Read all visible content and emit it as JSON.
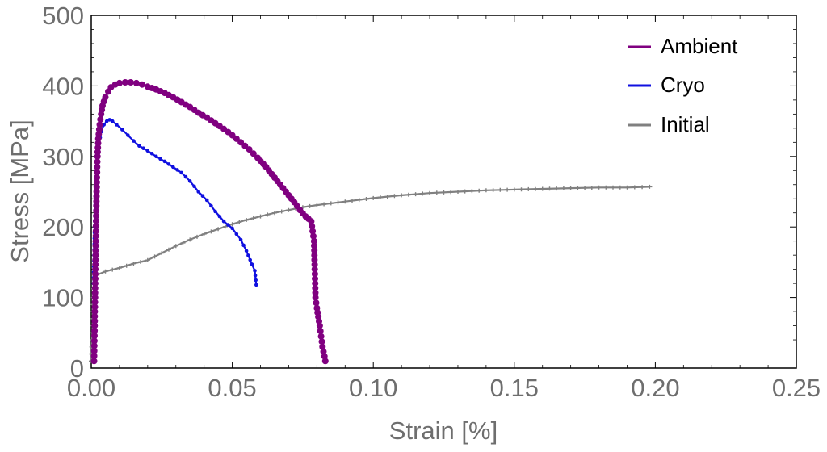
{
  "chart_data": {
    "type": "line",
    "title": "",
    "xlabel": "Strain [%]",
    "ylabel": "Stress [MPa]",
    "xlim": [
      0,
      0.25
    ],
    "ylim": [
      0,
      500
    ],
    "x_ticks": [
      0.0,
      0.05,
      0.1,
      0.15,
      0.2,
      0.25
    ],
    "x_tick_labels": [
      "0.00",
      "0.05",
      "0.10",
      "0.15",
      "0.20",
      "0.25"
    ],
    "y_ticks": [
      0,
      100,
      200,
      300,
      400,
      500
    ],
    "y_tick_labels": [
      "0",
      "100",
      "200",
      "300",
      "400",
      "500"
    ],
    "grid": false,
    "legend_position": "top-right",
    "series": [
      {
        "name": "Ambient",
        "color": "#800080",
        "marker": "circle",
        "points": [
          [
            0.001,
            10
          ],
          [
            0.0012,
            60
          ],
          [
            0.0014,
            120
          ],
          [
            0.0016,
            180
          ],
          [
            0.0018,
            230
          ],
          [
            0.002,
            270
          ],
          [
            0.0022,
            300
          ],
          [
            0.0025,
            325
          ],
          [
            0.003,
            345
          ],
          [
            0.0035,
            360
          ],
          [
            0.004,
            372
          ],
          [
            0.005,
            384
          ],
          [
            0.006,
            392
          ],
          [
            0.007,
            398
          ],
          [
            0.0085,
            402
          ],
          [
            0.01,
            404
          ],
          [
            0.012,
            405
          ],
          [
            0.014,
            405
          ],
          [
            0.016,
            404
          ],
          [
            0.018,
            402
          ],
          [
            0.02,
            399
          ],
          [
            0.023,
            395
          ],
          [
            0.026,
            390
          ],
          [
            0.029,
            384
          ],
          [
            0.032,
            377
          ],
          [
            0.035,
            370
          ],
          [
            0.038,
            362
          ],
          [
            0.041,
            355
          ],
          [
            0.044,
            347
          ],
          [
            0.047,
            339
          ],
          [
            0.05,
            330
          ],
          [
            0.053,
            320
          ],
          [
            0.056,
            310
          ],
          [
            0.059,
            298
          ],
          [
            0.062,
            285
          ],
          [
            0.065,
            270
          ],
          [
            0.068,
            255
          ],
          [
            0.07,
            245
          ],
          [
            0.072,
            235
          ],
          [
            0.074,
            224
          ],
          [
            0.076,
            215
          ],
          [
            0.078,
            208
          ],
          [
            0.079,
            180
          ],
          [
            0.0795,
            100
          ],
          [
            0.08,
            85
          ],
          [
            0.081,
            60
          ],
          [
            0.082,
            30
          ],
          [
            0.083,
            10
          ]
        ]
      },
      {
        "name": "Cryo",
        "color": "#1010e0",
        "marker": "dot",
        "points": [
          [
            0.0008,
            120
          ],
          [
            0.001,
            160
          ],
          [
            0.0012,
            200
          ],
          [
            0.0015,
            240
          ],
          [
            0.0018,
            270
          ],
          [
            0.0022,
            295
          ],
          [
            0.0028,
            318
          ],
          [
            0.0035,
            335
          ],
          [
            0.0045,
            345
          ],
          [
            0.0055,
            350
          ],
          [
            0.0065,
            352
          ],
          [
            0.0075,
            350
          ],
          [
            0.009,
            345
          ],
          [
            0.011,
            338
          ],
          [
            0.013,
            330
          ],
          [
            0.015,
            322
          ],
          [
            0.017,
            315
          ],
          [
            0.02,
            308
          ],
          [
            0.023,
            300
          ],
          [
            0.026,
            293
          ],
          [
            0.029,
            285
          ],
          [
            0.032,
            277
          ],
          [
            0.035,
            265
          ],
          [
            0.038,
            250
          ],
          [
            0.041,
            238
          ],
          [
            0.044,
            222
          ],
          [
            0.047,
            208
          ],
          [
            0.05,
            198
          ],
          [
            0.053,
            182
          ],
          [
            0.055,
            166
          ],
          [
            0.057,
            147
          ],
          [
            0.058,
            138
          ],
          [
            0.0585,
            118
          ]
        ]
      },
      {
        "name": "Initial",
        "color": "#808080",
        "marker": "star",
        "points": [
          [
            0.0,
            10
          ],
          [
            0.0005,
            60
          ],
          [
            0.0008,
            100
          ],
          [
            0.001,
            125
          ],
          [
            0.002,
            132
          ],
          [
            0.005,
            137
          ],
          [
            0.01,
            142
          ],
          [
            0.015,
            148
          ],
          [
            0.02,
            153
          ],
          [
            0.025,
            163
          ],
          [
            0.03,
            173
          ],
          [
            0.035,
            182
          ],
          [
            0.04,
            190
          ],
          [
            0.045,
            197
          ],
          [
            0.05,
            204
          ],
          [
            0.055,
            210
          ],
          [
            0.06,
            215
          ],
          [
            0.065,
            220
          ],
          [
            0.07,
            224
          ],
          [
            0.075,
            228
          ],
          [
            0.08,
            231
          ],
          [
            0.09,
            236
          ],
          [
            0.1,
            241
          ],
          [
            0.11,
            245
          ],
          [
            0.12,
            248
          ],
          [
            0.13,
            250
          ],
          [
            0.14,
            252
          ],
          [
            0.15,
            253
          ],
          [
            0.16,
            254
          ],
          [
            0.17,
            255
          ],
          [
            0.18,
            256
          ],
          [
            0.19,
            256
          ],
          [
            0.198,
            257
          ]
        ]
      }
    ]
  }
}
